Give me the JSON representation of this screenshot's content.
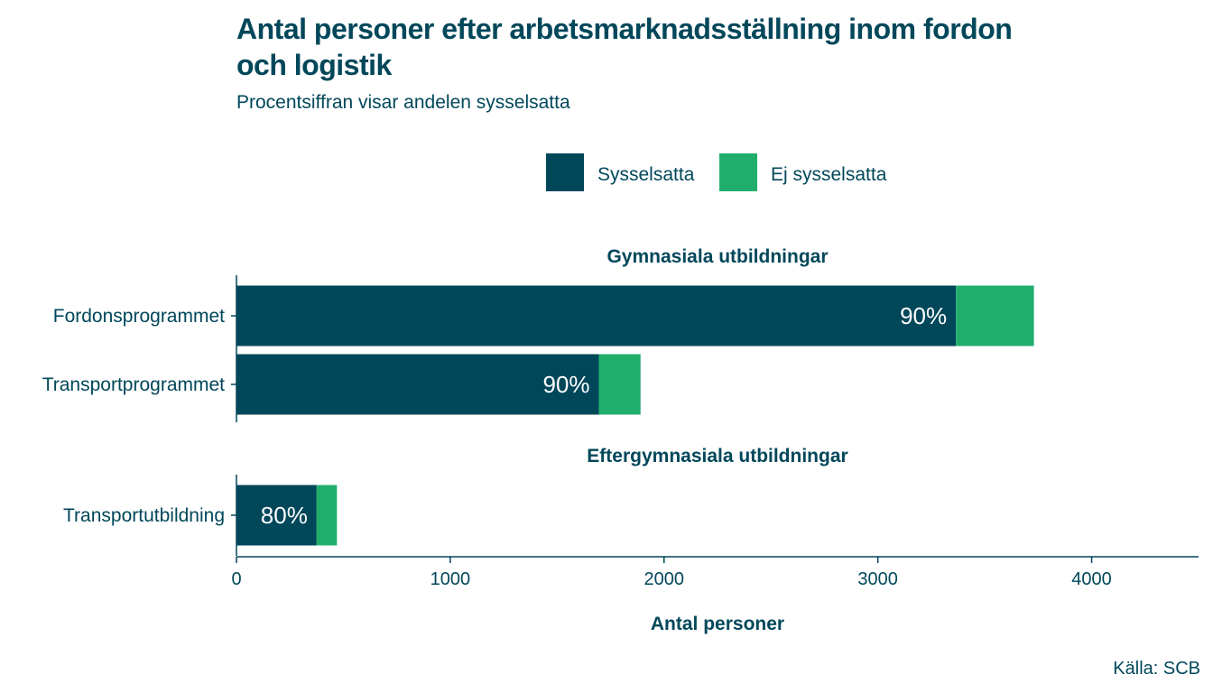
{
  "title": "Antal personer efter arbetsmarknadsställning inom fordon och logistik",
  "subtitle": "Procentsiffran visar andelen sysselsatta",
  "source": "Källa: SCB",
  "colors": {
    "sysselsatta": "#00475a",
    "ej_sysselsatta": "#21ae6c",
    "text": "#00475a",
    "bar_label": "#ffffff"
  },
  "chart_data": {
    "type": "bar",
    "orientation": "horizontal",
    "stacked": true,
    "xlabel": "Antal personer",
    "xlim": [
      0,
      4500
    ],
    "xticks": [
      0,
      1000,
      2000,
      3000,
      4000
    ],
    "grid": false,
    "legend": {
      "placement": "top",
      "entries": [
        "Sysselsatta",
        "Ej sysselsatta"
      ]
    },
    "series": [
      {
        "name": "Sysselsatta",
        "color": "#00475a"
      },
      {
        "name": "Ej sysselsatta",
        "color": "#21ae6c"
      }
    ],
    "panels": [
      {
        "title": "Gymnasiala utbildningar",
        "categories": [
          "Fordonsprogrammet",
          "Transportprogrammet"
        ],
        "values": {
          "Sysselsatta": [
            3365,
            1695
          ],
          "Ej sysselsatta": [
            365,
            195
          ]
        },
        "labels": [
          "90%",
          "90%"
        ]
      },
      {
        "title": "Eftergymnasiala utbildningar",
        "categories": [
          "Transportutbildning"
        ],
        "values": {
          "Sysselsatta": [
            375
          ],
          "Ej sysselsatta": [
            95
          ]
        },
        "labels": [
          "80%"
        ]
      }
    ]
  }
}
